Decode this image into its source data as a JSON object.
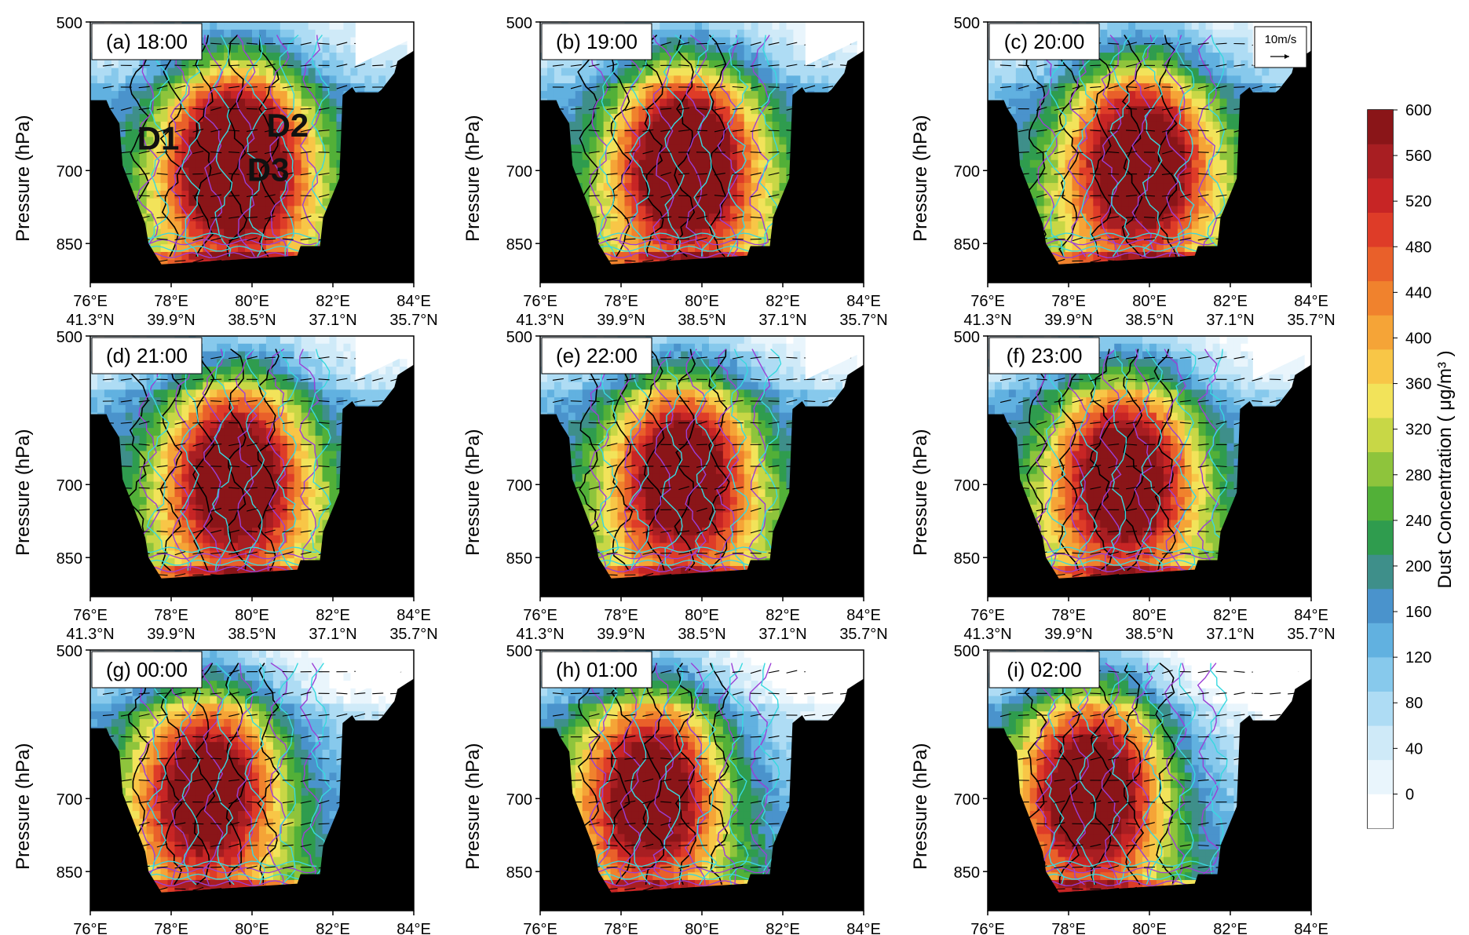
{
  "chart_data": {
    "type": "heatmap",
    "description_free": true,
    "layout": {
      "rows": 3,
      "cols": 3
    },
    "panels": [
      {
        "label": "(a) 18:00",
        "wind_scale": null,
        "annotations": [
          "D1",
          "D2",
          "D3"
        ],
        "peak": 560,
        "shape": {
          "cx": 0.45,
          "rise": 0.0,
          "pollLow": 0.0
        }
      },
      {
        "label": "(b) 19:00",
        "wind_scale": null,
        "annotations": [],
        "peak": 520,
        "shape": {
          "cx": 0.45,
          "rise": 0.05,
          "pollLow": 0.0
        }
      },
      {
        "label": "(c) 20:00",
        "wind_scale": "10m/s",
        "annotations": [],
        "peak": 500,
        "shape": {
          "cx": 0.47,
          "rise": 0.07,
          "pollLow": 0.0
        }
      },
      {
        "label": "(d) 21:00",
        "wind_scale": null,
        "annotations": [],
        "peak": 480,
        "shape": {
          "cx": 0.45,
          "rise": 0.1,
          "pollLow": 0.05
        }
      },
      {
        "label": "(e) 22:00",
        "wind_scale": null,
        "annotations": [],
        "peak": 470,
        "shape": {
          "cx": 0.44,
          "rise": 0.1,
          "pollLow": 0.08
        }
      },
      {
        "label": "(f) 23:00",
        "wind_scale": null,
        "annotations": [],
        "peak": 470,
        "shape": {
          "cx": 0.42,
          "rise": 0.12,
          "pollLow": 0.1
        }
      },
      {
        "label": "(g) 00:00",
        "wind_scale": null,
        "annotations": [],
        "peak": 460,
        "shape": {
          "cx": 0.36,
          "rise": 0.12,
          "pollLow": 0.2
        }
      },
      {
        "label": "(h) 01:00",
        "wind_scale": null,
        "annotations": [],
        "peak": 460,
        "shape": {
          "cx": 0.34,
          "rise": 0.12,
          "pollLow": 0.25
        }
      },
      {
        "label": "(i) 02:00",
        "wind_scale": null,
        "annotations": [],
        "peak": 480,
        "shape": {
          "cx": 0.32,
          "rise": 0.1,
          "pollLow": 0.3
        }
      }
    ],
    "x_axis": {
      "ticks": [
        {
          "lon": "76°E",
          "lat": "41.3°N"
        },
        {
          "lon": "78°E",
          "lat": "39.9°N"
        },
        {
          "lon": "80°E",
          "lat": "38.5°N"
        },
        {
          "lon": "82°E",
          "lat": "37.1°N"
        },
        {
          "lon": "84°E",
          "lat": "35.7°N"
        }
      ],
      "range": [
        76,
        84
      ]
    },
    "y_axis": {
      "label": "Pressure (hPa)",
      "ticks": [
        "500",
        "700",
        "850"
      ],
      "tick_values": [
        500,
        700,
        850
      ],
      "range": [
        500,
        900
      ],
      "scale": "log-pressure"
    },
    "colorbar": {
      "label": "Dust Concentration ( μg/m³ )",
      "ticks": [
        "0",
        "40",
        "80",
        "120",
        "160",
        "200",
        "240",
        "280",
        "320",
        "360",
        "400",
        "440",
        "480",
        "520",
        "560",
        "600"
      ],
      "colors": [
        "#ffffff",
        "#e9f5fc",
        "#cfeaf8",
        "#aedcf4",
        "#87c9ec",
        "#61b1e0",
        "#4a93cc",
        "#3e8f8a",
        "#2f9c4e",
        "#52b038",
        "#8ec43c",
        "#c8d746",
        "#f2e35a",
        "#f8c647",
        "#f5a437",
        "#f0822d",
        "#e9602a",
        "#de3c28",
        "#c72525",
        "#a81e22",
        "#8a1518"
      ],
      "max": 630
    },
    "terrain_color": "#000000"
  }
}
